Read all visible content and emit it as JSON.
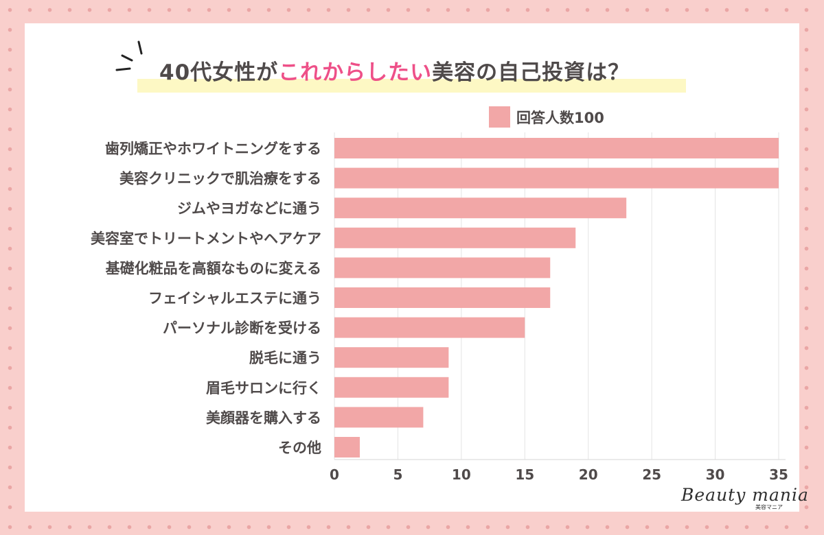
{
  "title": {
    "prefix": "40代女性が",
    "highlight": "これからしたい",
    "suffix": "美容の自己投資は？"
  },
  "colors": {
    "bar": "#f2a7a7",
    "accent": "#ee5088",
    "highlight": "#fdf8c4",
    "text": "#4f4a4a"
  },
  "chart_data": {
    "type": "bar",
    "orientation": "horizontal",
    "legend": "回答人数100",
    "categories": [
      "歯列矯正やホワイトニングをする",
      "美容クリニックで肌治療をする",
      "ジムやヨガなどに通う",
      "美容室でトリートメントやヘアケア",
      "基礎化粧品を高額なものに変える",
      "フェイシャルエステに通う",
      "パーソナル診断を受ける",
      "脱毛に通う",
      "眉毛サロンに行く",
      "美顔器を購入する",
      "その他"
    ],
    "values": [
      35,
      35,
      23,
      19,
      17,
      17,
      15,
      9,
      9,
      7,
      2
    ],
    "xlim": [
      0,
      35
    ],
    "xticks": [
      "0",
      "5",
      "10",
      "15",
      "20",
      "25",
      "30",
      "35"
    ],
    "grid": true
  },
  "logo": {
    "name": "Beauty mania",
    "sub": "美容マニア"
  }
}
